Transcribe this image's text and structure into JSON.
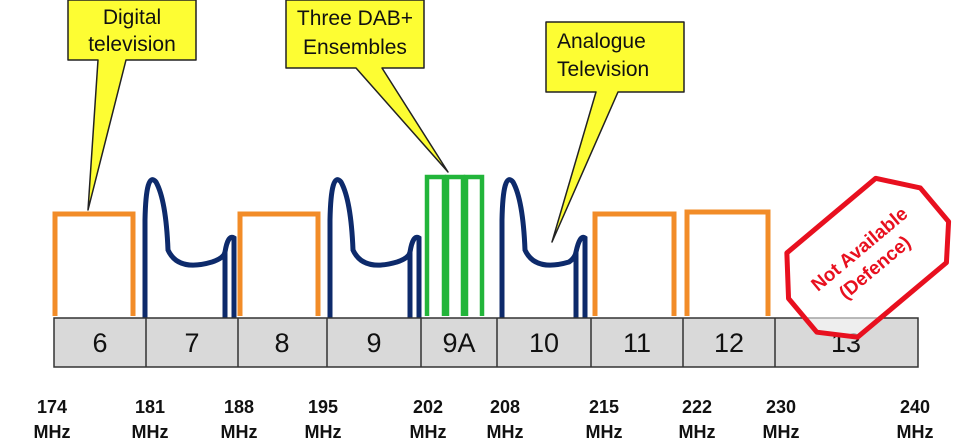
{
  "channels": [
    {
      "label": "6"
    },
    {
      "label": "7"
    },
    {
      "label": "8"
    },
    {
      "label": "9"
    },
    {
      "label": "9A"
    },
    {
      "label": "10"
    },
    {
      "label": "11"
    },
    {
      "label": "12"
    },
    {
      "label": "13"
    }
  ],
  "frequencies": [
    {
      "value": "174",
      "unit": "MHz"
    },
    {
      "value": "181",
      "unit": "MHz"
    },
    {
      "value": "188",
      "unit": "MHz"
    },
    {
      "value": "195",
      "unit": "MHz"
    },
    {
      "value": "202",
      "unit": "MHz"
    },
    {
      "value": "208",
      "unit": "MHz"
    },
    {
      "value": "215",
      "unit": "MHz"
    },
    {
      "value": "222",
      "unit": "MHz"
    },
    {
      "value": "230",
      "unit": "MHz"
    },
    {
      "value": "240",
      "unit": "MHz"
    }
  ],
  "callouts": {
    "digital_tv": {
      "line1": "Digital",
      "line2": "television"
    },
    "dab": {
      "line1": "Three DAB+",
      "line2": "Ensembles"
    },
    "analogue_tv": {
      "line1": "Analogue",
      "line2": "Television"
    }
  },
  "stamp": {
    "line1": "Not Available",
    "line2": "(Defence)"
  },
  "colors": {
    "digital": "#f28c28",
    "analogue": "#0d2a6b",
    "dab": "#22b53a",
    "callout_fill": "#fdfd33",
    "stamp": "#e8101f",
    "channel_fill": "#d9d9d9"
  },
  "icons": [
    "callout-arrow-digital",
    "callout-arrow-dab",
    "callout-arrow-analogue",
    "not-available-stamp"
  ]
}
